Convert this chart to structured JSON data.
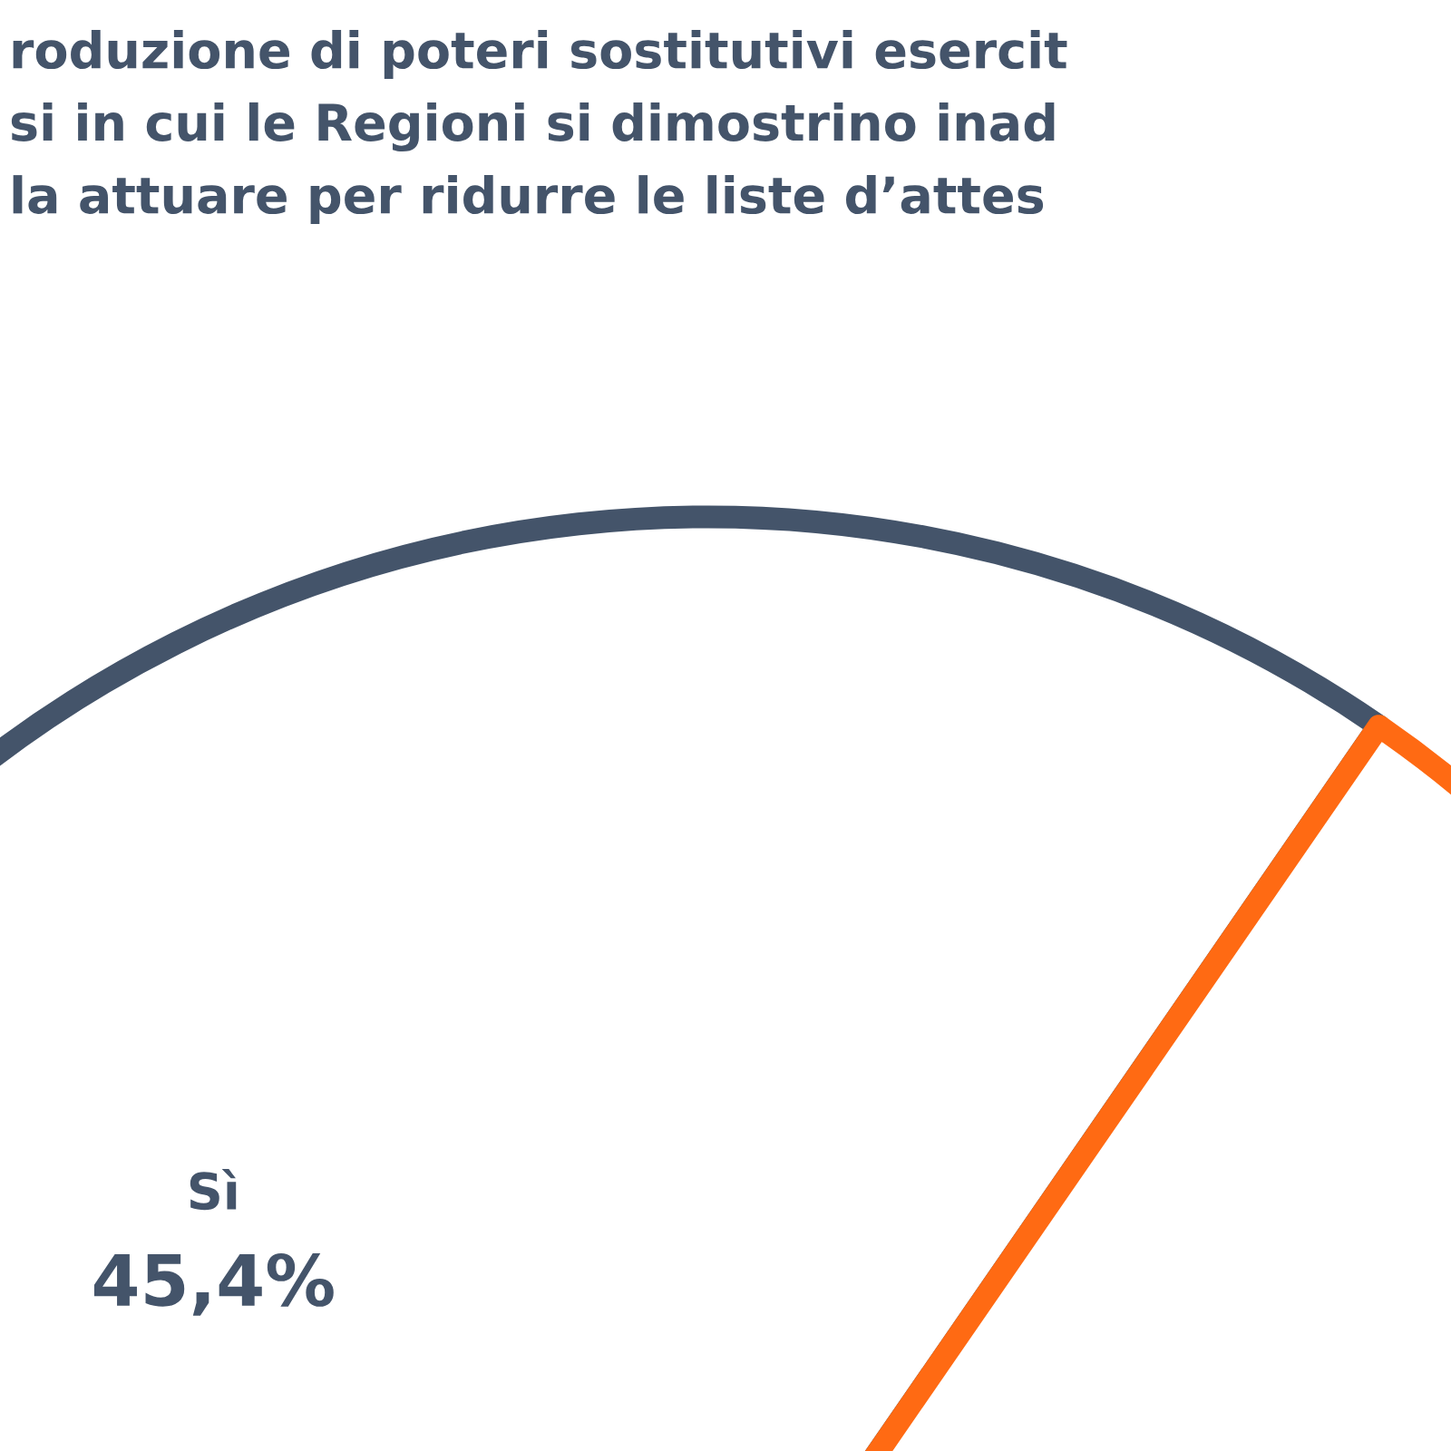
{
  "chart_data": {
    "type": "pie",
    "title": "roduzione di poteri sostitutivi esercit\nsi in cui le Regioni si dimostrino inad\nla attuare per ridurre le liste d’attes",
    "categories": [
      "Sì",
      null
    ],
    "values": [
      45.4,
      54.6
    ],
    "value_labels": [
      "45,4%",
      null
    ],
    "colors": [
      "#44546a",
      "#ff6a13"
    ]
  }
}
